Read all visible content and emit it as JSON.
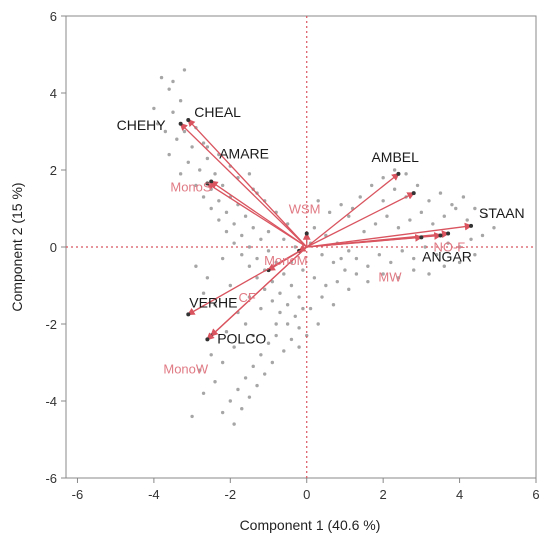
{
  "chart_data": {
    "type": "scatter",
    "title": "",
    "xlabel": "Component 1  (40.6 %)",
    "ylabel": "Component 2  (15 %)",
    "xlim": [
      -6.3,
      6
    ],
    "ylim": [
      -6,
      6
    ],
    "x_ticks": [
      "-6",
      "-4",
      "-2",
      "0",
      "2",
      "4",
      "6"
    ],
    "x_tick_values": [
      -6,
      -4,
      -2,
      0,
      2,
      4,
      6
    ],
    "y_ticks": [
      "6",
      "4",
      "2",
      "0",
      "-2",
      "-4",
      "-6"
    ],
    "y_tick_values": [
      6,
      4,
      2,
      0,
      -2,
      -4,
      -6
    ],
    "reference_lines": {
      "x": 0,
      "y": 0,
      "style": "dotted",
      "color": "#d9545f"
    },
    "points_color": "#a6a6a6",
    "loadings_color": "#d9545f",
    "loadings": [
      {
        "name": "CHEHY",
        "x": -3.3,
        "y": 3.2,
        "label_style": "dark"
      },
      {
        "name": "CHEAL",
        "x": -3.1,
        "y": 3.3,
        "label_style": "dark"
      },
      {
        "name": "AMARE",
        "x": -2.5,
        "y": 1.7,
        "label_style": "dark"
      },
      {
        "name": "MonoS",
        "x": -2.6,
        "y": 1.65,
        "label_style": "pink"
      },
      {
        "name": "AMBEL",
        "x": 2.4,
        "y": 1.9,
        "label_style": "dark"
      },
      {
        "name": "STAAN",
        "x": 4.3,
        "y": 0.55,
        "label_style": "dark"
      },
      {
        "name": "ANGAR",
        "x": 3.7,
        "y": 0.35,
        "label_style": "dark"
      },
      {
        "name": "NO-F",
        "x": 3.5,
        "y": 0.3,
        "label_style": "pink"
      },
      {
        "name": "MW",
        "x": 3.0,
        "y": 0.25,
        "label_style": "pink"
      },
      {
        "name": "WSM",
        "x": 0.0,
        "y": 0.35,
        "label_style": "pink"
      },
      {
        "name": "MonoM",
        "x": -0.2,
        "y": -0.1,
        "label_style": "pink"
      },
      {
        "name": "CF",
        "x": -1.0,
        "y": -0.6,
        "label_style": "pink"
      },
      {
        "name": "VERHE",
        "x": -3.1,
        "y": -1.75,
        "label_style": "dark"
      },
      {
        "name": "POLCO",
        "x": -2.5,
        "y": -2.3,
        "label_style": "dark"
      },
      {
        "name": "MonoW",
        "x": -2.6,
        "y": -2.4,
        "label_style": "pink"
      },
      {
        "name": "",
        "x": 2.8,
        "y": 1.4,
        "label_style": "none"
      }
    ],
    "scores": [
      [
        -3.8,
        4.4
      ],
      [
        -3.6,
        4.1
      ],
      [
        -3.3,
        3.8
      ],
      [
        -3.5,
        3.5
      ],
      [
        -3.9,
        3.2
      ],
      [
        -3.2,
        3.0
      ],
      [
        -2.9,
        3.1
      ],
      [
        -3.4,
        2.8
      ],
      [
        -3.0,
        2.6
      ],
      [
        -2.7,
        2.7
      ],
      [
        -3.6,
        2.4
      ],
      [
        -3.1,
        2.2
      ],
      [
        -2.6,
        2.3
      ],
      [
        -2.8,
        2.0
      ],
      [
        -3.3,
        1.9
      ],
      [
        -2.4,
        1.9
      ],
      [
        -2.9,
        1.6
      ],
      [
        -2.5,
        1.5
      ],
      [
        -2.2,
        1.6
      ],
      [
        -2.7,
        1.3
      ],
      [
        -2.3,
        1.2
      ],
      [
        -2.0,
        1.3
      ],
      [
        -2.5,
        1.0
      ],
      [
        -2.1,
        0.9
      ],
      [
        -1.8,
        1.1
      ],
      [
        -2.3,
        0.7
      ],
      [
        -1.9,
        0.6
      ],
      [
        -1.6,
        0.8
      ],
      [
        -2.1,
        0.4
      ],
      [
        -1.7,
        0.3
      ],
      [
        -1.4,
        0.5
      ],
      [
        -1.9,
        0.1
      ],
      [
        -1.5,
        0.0
      ],
      [
        -1.2,
        0.2
      ],
      [
        -1.7,
        -0.2
      ],
      [
        -1.3,
        -0.3
      ],
      [
        -1.0,
        -0.1
      ],
      [
        -1.5,
        -0.5
      ],
      [
        -1.1,
        -0.6
      ],
      [
        -0.8,
        -0.4
      ],
      [
        -1.3,
        -0.8
      ],
      [
        -0.9,
        -0.9
      ],
      [
        -0.6,
        -0.7
      ],
      [
        -1.1,
        -1.1
      ],
      [
        -0.7,
        -1.2
      ],
      [
        -0.4,
        -1.0
      ],
      [
        -0.9,
        -1.4
      ],
      [
        -0.5,
        -1.5
      ],
      [
        -0.2,
        -1.3
      ],
      [
        -0.7,
        -1.7
      ],
      [
        -0.3,
        -1.8
      ],
      [
        -0.1,
        -1.6
      ],
      [
        -0.5,
        -2.0
      ],
      [
        -0.2,
        -2.1
      ],
      [
        -0.8,
        -2.3
      ],
      [
        -0.4,
        -2.4
      ],
      [
        -1.0,
        -2.5
      ],
      [
        -0.6,
        -2.7
      ],
      [
        -1.2,
        -2.8
      ],
      [
        -0.9,
        -3.0
      ],
      [
        -1.4,
        -3.1
      ],
      [
        -1.1,
        -3.3
      ],
      [
        -1.6,
        -3.4
      ],
      [
        -1.3,
        -3.6
      ],
      [
        -1.8,
        -3.7
      ],
      [
        -1.5,
        -3.9
      ],
      [
        -2.0,
        -4.0
      ],
      [
        -1.7,
        -4.2
      ],
      [
        -2.2,
        -4.3
      ],
      [
        -1.9,
        -4.6
      ],
      [
        -3.0,
        -4.4
      ],
      [
        -2.7,
        -3.8
      ],
      [
        -2.4,
        -3.5
      ],
      [
        -2.8,
        -3.2
      ],
      [
        -2.2,
        -3.0
      ],
      [
        -2.5,
        -2.8
      ],
      [
        -1.9,
        -2.6
      ],
      [
        -2.1,
        -2.2
      ],
      [
        -1.6,
        -2.0
      ],
      [
        -1.8,
        -1.7
      ],
      [
        -2.4,
        -1.5
      ],
      [
        -2.7,
        -1.2
      ],
      [
        -2.0,
        -1.0
      ],
      [
        -1.5,
        -1.3
      ],
      [
        -2.6,
        -0.8
      ],
      [
        -2.9,
        -0.5
      ],
      [
        -2.2,
        -0.3
      ],
      [
        -1.2,
        -1.6
      ],
      [
        -0.8,
        -2.0
      ],
      [
        -1.4,
        -2.3
      ],
      [
        0.2,
        0.5
      ],
      [
        0.5,
        0.3
      ],
      [
        0.8,
        0.1
      ],
      [
        1.1,
        -0.1
      ],
      [
        0.4,
        -0.2
      ],
      [
        0.7,
        -0.4
      ],
      [
        1.0,
        -0.6
      ],
      [
        1.3,
        -0.3
      ],
      [
        1.6,
        -0.5
      ],
      [
        1.9,
        -0.2
      ],
      [
        2.2,
        -0.4
      ],
      [
        2.5,
        -0.1
      ],
      [
        2.8,
        -0.3
      ],
      [
        3.1,
        0.0
      ],
      [
        3.4,
        -0.2
      ],
      [
        3.7,
        0.1
      ],
      [
        4.0,
        0.0
      ],
      [
        4.3,
        0.2
      ],
      [
        4.6,
        0.3
      ],
      [
        4.9,
        0.5
      ],
      [
        1.5,
        0.4
      ],
      [
        1.8,
        0.6
      ],
      [
        2.1,
        0.8
      ],
      [
        2.4,
        0.5
      ],
      [
        2.7,
        0.7
      ],
      [
        3.0,
        0.9
      ],
      [
        3.3,
        0.6
      ],
      [
        3.6,
        0.8
      ],
      [
        3.9,
        1.0
      ],
      [
        4.2,
        0.7
      ],
      [
        2.0,
        1.2
      ],
      [
        2.3,
        1.5
      ],
      [
        2.6,
        1.3
      ],
      [
        2.9,
        1.6
      ],
      [
        3.2,
        1.2
      ],
      [
        3.5,
        1.4
      ],
      [
        3.8,
        1.1
      ],
      [
        4.1,
        1.3
      ],
      [
        4.4,
        1.0
      ],
      [
        4.7,
        0.8
      ],
      [
        1.2,
        1.0
      ],
      [
        1.4,
        1.3
      ],
      [
        1.7,
        1.6
      ],
      [
        2.0,
        1.8
      ],
      [
        2.3,
        2.0
      ],
      [
        2.6,
        1.9
      ],
      [
        1.1,
        0.8
      ],
      [
        0.9,
        1.1
      ],
      [
        0.6,
        0.9
      ],
      [
        0.3,
        1.2
      ],
      [
        0.2,
        -0.8
      ],
      [
        0.5,
        -1.0
      ],
      [
        0.8,
        -0.9
      ],
      [
        1.1,
        -1.1
      ],
      [
        0.4,
        -1.3
      ],
      [
        0.7,
        -1.5
      ],
      [
        0.1,
        -1.6
      ],
      [
        0.3,
        -2.0
      ],
      [
        0.0,
        -2.3
      ],
      [
        -0.2,
        -2.6
      ],
      [
        -0.5,
        0.6
      ],
      [
        -0.8,
        0.9
      ],
      [
        -1.1,
        1.2
      ],
      [
        -1.4,
        1.5
      ],
      [
        -1.0,
        0.4
      ],
      [
        -0.6,
        0.2
      ],
      [
        -0.3,
        0.0
      ],
      [
        -0.4,
        -0.4
      ],
      [
        -0.1,
        -0.6
      ],
      [
        0.1,
        0.1
      ],
      [
        1.6,
        -0.9
      ],
      [
        2.0,
        -0.7
      ],
      [
        2.4,
        -0.8
      ],
      [
        2.8,
        -0.6
      ],
      [
        3.2,
        -0.7
      ],
      [
        3.6,
        -0.5
      ],
      [
        4.0,
        -0.4
      ],
      [
        4.4,
        -0.2
      ],
      [
        1.3,
        -0.7
      ],
      [
        0.9,
        -0.3
      ],
      [
        -2.6,
        2.6
      ],
      [
        -2.3,
        2.4
      ],
      [
        -2.0,
        2.1
      ],
      [
        -1.8,
        1.8
      ],
      [
        -1.5,
        1.9
      ],
      [
        -1.3,
        1.4
      ],
      [
        -3.7,
        3.0
      ],
      [
        -4.0,
        3.6
      ],
      [
        -3.5,
        4.3
      ],
      [
        -3.2,
        4.6
      ]
    ]
  }
}
